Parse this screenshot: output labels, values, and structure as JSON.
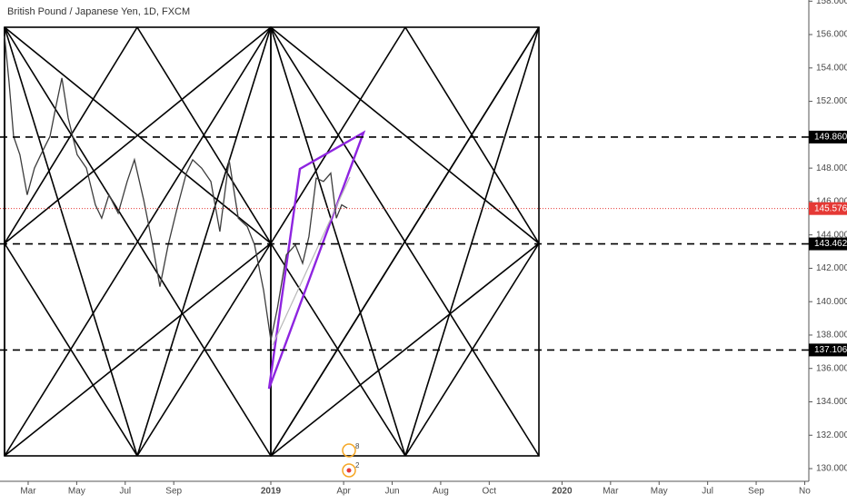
{
  "chart_data": {
    "type": "line",
    "title": "British Pound / Japanese Yen, 1D, FXCM",
    "x": [
      1.03,
      1.21,
      1.4,
      1.66,
      1.96,
      2.26,
      2.52,
      2.9,
      3.16,
      3.39,
      3.65,
      4.02,
      4.4,
      4.77,
      5.03,
      5.33,
      5.71,
      6.08,
      6.38,
      6.76,
      7.13,
      7.43,
      7.77,
      8.14,
      8.52,
      8.78,
      9.15,
      9.53,
      9.9,
      10.28,
      10.66,
      11.03,
      11.33,
      11.7,
      12.0,
      12.27,
      12.64,
      13.01,
      13.31,
      13.57,
      13.87,
      14.17,
      14.47,
      14.7,
      14.92,
      15.15
    ],
    "series": [
      {
        "name": "GBPJPY",
        "color": "#3c3c3c",
        "values": [
          155.9,
          153.2,
          149.9,
          148.8,
          146.4,
          148.0,
          148.8,
          149.9,
          151.8,
          153.4,
          151.0,
          148.8,
          148.0,
          145.8,
          145.0,
          146.4,
          145.3,
          147.2,
          148.5,
          146.1,
          143.4,
          140.9,
          143.4,
          145.6,
          147.7,
          148.5,
          148.0,
          147.2,
          144.2,
          148.5,
          145.0,
          144.5,
          143.4,
          140.7,
          137.7,
          139.6,
          142.8,
          143.4,
          142.3,
          143.9,
          147.4,
          147.2,
          147.7,
          145.0,
          145.8,
          145.6
        ]
      }
    ],
    "xlim": [
      0.84,
      34.17
    ],
    "xticks": [
      {
        "value": 2,
        "label": "Mar"
      },
      {
        "value": 4,
        "label": "May"
      },
      {
        "value": 6,
        "label": "Jul"
      },
      {
        "value": 8,
        "label": "Sep"
      },
      {
        "value": 12,
        "label": "2019"
      },
      {
        "value": 15,
        "label": "Apr"
      },
      {
        "value": 17,
        "label": "Jun"
      },
      {
        "value": 19,
        "label": "Aug"
      },
      {
        "value": 21,
        "label": "Oct"
      },
      {
        "value": 24,
        "label": "2020"
      },
      {
        "value": 26,
        "label": "Mar"
      },
      {
        "value": 28,
        "label": "May"
      },
      {
        "value": 30,
        "label": "Jul"
      },
      {
        "value": 32,
        "label": "Sep"
      },
      {
        "value": 34,
        "label": "No"
      }
    ],
    "ylim": [
      129.24,
      158.07
    ],
    "yticks": [
      {
        "value": 130,
        "label": "130.000"
      },
      {
        "value": 132,
        "label": "132.000"
      },
      {
        "value": 134,
        "label": "134.000"
      },
      {
        "value": 136,
        "label": "136.000"
      },
      {
        "value": 138,
        "label": "138.000"
      },
      {
        "value": 140,
        "label": "140.000"
      },
      {
        "value": 142,
        "label": "142.000"
      },
      {
        "value": 144,
        "label": "144.000"
      },
      {
        "value": 146,
        "label": "146.000"
      },
      {
        "value": 148,
        "label": "148.000"
      },
      {
        "value": 150,
        "label": "150.000"
      },
      {
        "value": 152,
        "label": "152.000"
      },
      {
        "value": 154,
        "label": "154.000"
      },
      {
        "value": 156,
        "label": "156.000"
      },
      {
        "value": 158,
        "label": "158.000"
      }
    ],
    "levels": [
      {
        "value": 149.86,
        "label": "149.860"
      },
      {
        "value": 143.462,
        "label": "143.462"
      },
      {
        "value": 137.106,
        "label": "137.106"
      }
    ],
    "last_price": {
      "value": 145.576,
      "label": "145.576",
      "color": "#e53935"
    },
    "events": [
      "8",
      "2"
    ]
  }
}
